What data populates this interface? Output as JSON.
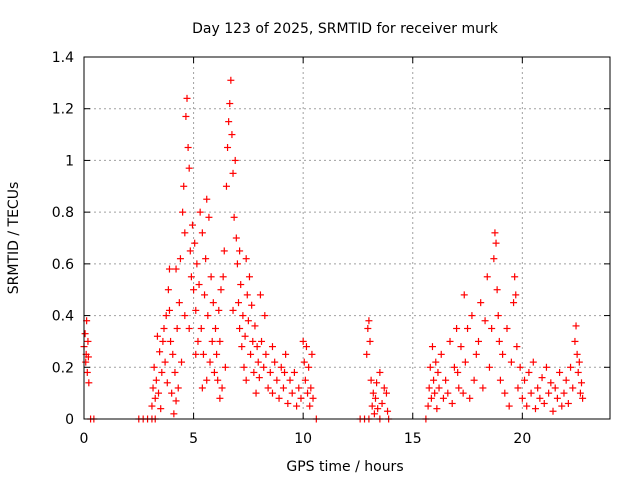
{
  "chart_data": {
    "type": "scatter",
    "title": "Day 123 of 2025, SRMTID for receiver murk",
    "xlabel": "GPS time / hours",
    "ylabel": "SRMTID / TECUs",
    "xlim": [
      0,
      24
    ],
    "ylim": [
      0,
      1.4
    ],
    "x_ticks": [
      "0",
      "5",
      "10",
      "15",
      "20"
    ],
    "x_tick_values": [
      0,
      5,
      10,
      15,
      20
    ],
    "y_ticks": [
      "0",
      "0.2",
      "0.4",
      "0.6",
      "0.8",
      "1",
      "1.2",
      "1.4"
    ],
    "y_tick_values": [
      0,
      0.2,
      0.4,
      0.6,
      0.8,
      1.0,
      1.2,
      1.4
    ],
    "grid": true,
    "marker": "plus",
    "color": "#ff0000",
    "series": [
      {
        "name": "SRMTID",
        "points": [
          [
            0.0,
            0.28
          ],
          [
            0.05,
            0.33
          ],
          [
            0.08,
            0.22
          ],
          [
            0.1,
            0.25
          ],
          [
            0.12,
            0.38
          ],
          [
            0.15,
            0.18
          ],
          [
            0.18,
            0.3
          ],
          [
            0.2,
            0.24
          ],
          [
            0.22,
            0.14
          ],
          [
            0.3,
            0.0
          ],
          [
            0.45,
            0.0
          ],
          [
            2.5,
            0.0
          ],
          [
            2.7,
            0.0
          ],
          [
            2.9,
            0.0
          ],
          [
            3.1,
            0.0
          ],
          [
            3.25,
            0.0
          ],
          [
            3.1,
            0.05
          ],
          [
            3.15,
            0.12
          ],
          [
            3.2,
            0.2
          ],
          [
            3.25,
            0.08
          ],
          [
            3.3,
            0.15
          ],
          [
            3.35,
            0.32
          ],
          [
            3.4,
            0.1
          ],
          [
            3.45,
            0.26
          ],
          [
            3.5,
            0.04
          ],
          [
            3.55,
            0.18
          ],
          [
            3.6,
            0.3
          ],
          [
            3.65,
            0.35
          ],
          [
            3.7,
            0.22
          ],
          [
            3.75,
            0.4
          ],
          [
            3.8,
            0.14
          ],
          [
            3.85,
            0.5
          ],
          [
            3.9,
            0.58
          ],
          [
            3.95,
            0.3
          ],
          [
            4.0,
            0.1
          ],
          [
            4.05,
            0.25
          ],
          [
            4.1,
            0.02
          ],
          [
            4.15,
            0.18
          ],
          [
            4.2,
            0.07
          ],
          [
            4.25,
            0.35
          ],
          [
            4.3,
            0.12
          ],
          [
            4.35,
            0.45
          ],
          [
            4.4,
            0.62
          ],
          [
            4.45,
            0.22
          ],
          [
            4.5,
            0.8
          ],
          [
            4.55,
            0.9
          ],
          [
            4.6,
            0.72
          ],
          [
            4.65,
            1.17
          ],
          [
            4.7,
            1.24
          ],
          [
            4.75,
            1.05
          ],
          [
            4.8,
            0.97
          ],
          [
            4.85,
            0.65
          ],
          [
            4.9,
            0.55
          ],
          [
            4.95,
            0.75
          ],
          [
            5.0,
            0.5
          ],
          [
            5.05,
            0.68
          ],
          [
            5.1,
            0.42
          ],
          [
            5.15,
            0.6
          ],
          [
            5.2,
            0.3
          ],
          [
            5.25,
            0.52
          ],
          [
            5.3,
            0.8
          ],
          [
            5.35,
            0.35
          ],
          [
            5.4,
            0.72
          ],
          [
            5.45,
            0.25
          ],
          [
            5.5,
            0.48
          ],
          [
            5.55,
            0.62
          ],
          [
            5.6,
            0.85
          ],
          [
            5.65,
            0.4
          ],
          [
            5.7,
            0.78
          ],
          [
            5.75,
            0.22
          ],
          [
            5.8,
            0.55
          ],
          [
            5.85,
            0.3
          ],
          [
            5.9,
            0.45
          ],
          [
            5.95,
            0.18
          ],
          [
            6.0,
            0.35
          ],
          [
            6.05,
            0.25
          ],
          [
            6.1,
            0.15
          ],
          [
            6.15,
            0.42
          ],
          [
            6.2,
            0.3
          ],
          [
            6.25,
            0.5
          ],
          [
            6.3,
            0.12
          ],
          [
            6.35,
            0.55
          ],
          [
            6.4,
            0.65
          ],
          [
            6.45,
            0.2
          ],
          [
            6.5,
            0.9
          ],
          [
            6.55,
            1.05
          ],
          [
            6.6,
            1.15
          ],
          [
            6.65,
            1.22
          ],
          [
            6.7,
            1.31
          ],
          [
            6.75,
            1.1
          ],
          [
            6.8,
            0.95
          ],
          [
            6.85,
            0.78
          ],
          [
            6.9,
            1.0
          ],
          [
            6.95,
            0.7
          ],
          [
            7.0,
            0.6
          ],
          [
            7.05,
            0.45
          ],
          [
            7.1,
            0.35
          ],
          [
            7.15,
            0.52
          ],
          [
            7.2,
            0.28
          ],
          [
            7.25,
            0.4
          ],
          [
            7.3,
            0.2
          ],
          [
            7.35,
            0.32
          ],
          [
            7.4,
            0.15
          ],
          [
            7.45,
            0.48
          ],
          [
            7.5,
            0.38
          ],
          [
            7.55,
            0.55
          ],
          [
            7.6,
            0.25
          ],
          [
            7.65,
            0.44
          ],
          [
            7.7,
            0.3
          ],
          [
            7.75,
            0.18
          ],
          [
            7.8,
            0.36
          ],
          [
            7.85,
            0.1
          ],
          [
            7.9,
            0.28
          ],
          [
            7.95,
            0.22
          ],
          [
            8.0,
            0.16
          ],
          [
            8.1,
            0.3
          ],
          [
            8.2,
            0.2
          ],
          [
            8.3,
            0.25
          ],
          [
            8.4,
            0.12
          ],
          [
            8.5,
            0.18
          ],
          [
            8.6,
            0.1
          ],
          [
            8.7,
            0.22
          ],
          [
            8.8,
            0.15
          ],
          [
            8.9,
            0.08
          ],
          [
            9.0,
            0.2
          ],
          [
            9.1,
            0.12
          ],
          [
            9.2,
            0.25
          ],
          [
            9.3,
            0.06
          ],
          [
            9.4,
            0.15
          ],
          [
            9.5,
            0.1
          ],
          [
            9.6,
            0.18
          ],
          [
            9.7,
            0.05
          ],
          [
            9.8,
            0.12
          ],
          [
            9.9,
            0.08
          ],
          [
            10.0,
            0.3
          ],
          [
            10.05,
            0.22
          ],
          [
            10.1,
            0.15
          ],
          [
            10.15,
            0.28
          ],
          [
            10.2,
            0.1
          ],
          [
            10.25,
            0.2
          ],
          [
            10.3,
            0.05
          ],
          [
            10.35,
            0.12
          ],
          [
            10.4,
            0.25
          ],
          [
            10.45,
            0.08
          ],
          [
            4.2,
            0.58
          ],
          [
            4.8,
            0.35
          ],
          [
            5.1,
            0.25
          ],
          [
            5.6,
            0.15
          ],
          [
            6.2,
            0.08
          ],
          [
            6.8,
            0.42
          ],
          [
            7.1,
            0.65
          ],
          [
            7.4,
            0.62
          ],
          [
            8.05,
            0.48
          ],
          [
            8.25,
            0.4
          ],
          [
            8.6,
            0.28
          ],
          [
            9.15,
            0.18
          ],
          [
            3.9,
            0.42
          ],
          [
            4.6,
            0.4
          ],
          [
            5.4,
            0.12
          ],
          [
            10.6,
            0.0
          ],
          [
            12.6,
            0.0
          ],
          [
            12.8,
            0.0
          ],
          [
            13.0,
            0.0
          ],
          [
            13.5,
            0.0
          ],
          [
            13.9,
            0.0
          ],
          [
            15.6,
            0.0
          ],
          [
            12.9,
            0.25
          ],
          [
            12.95,
            0.35
          ],
          [
            13.0,
            0.38
          ],
          [
            13.05,
            0.3
          ],
          [
            13.1,
            0.15
          ],
          [
            13.15,
            0.05
          ],
          [
            13.2,
            0.1
          ],
          [
            13.25,
            0.02
          ],
          [
            13.3,
            0.08
          ],
          [
            13.35,
            0.14
          ],
          [
            13.4,
            0.04
          ],
          [
            13.5,
            0.18
          ],
          [
            13.6,
            0.06
          ],
          [
            13.7,
            0.12
          ],
          [
            13.8,
            0.1
          ],
          [
            13.85,
            0.03
          ],
          [
            15.7,
            0.05
          ],
          [
            15.75,
            0.12
          ],
          [
            15.8,
            0.2
          ],
          [
            15.85,
            0.08
          ],
          [
            15.9,
            0.28
          ],
          [
            15.95,
            0.15
          ],
          [
            16.0,
            0.1
          ],
          [
            16.05,
            0.22
          ],
          [
            16.1,
            0.04
          ],
          [
            16.15,
            0.18
          ],
          [
            16.2,
            0.12
          ],
          [
            16.3,
            0.25
          ],
          [
            16.4,
            0.08
          ],
          [
            16.5,
            0.15
          ],
          [
            16.6,
            0.1
          ],
          [
            16.7,
            0.3
          ],
          [
            16.8,
            0.06
          ],
          [
            16.9,
            0.2
          ],
          [
            17.0,
            0.35
          ],
          [
            17.05,
            0.18
          ],
          [
            17.1,
            0.12
          ],
          [
            17.2,
            0.28
          ],
          [
            17.3,
            0.1
          ],
          [
            17.35,
            0.48
          ],
          [
            17.4,
            0.22
          ],
          [
            17.5,
            0.35
          ],
          [
            17.6,
            0.08
          ],
          [
            17.7,
            0.4
          ],
          [
            17.8,
            0.15
          ],
          [
            17.9,
            0.25
          ],
          [
            18.0,
            0.3
          ],
          [
            18.1,
            0.45
          ],
          [
            18.2,
            0.12
          ],
          [
            18.3,
            0.38
          ],
          [
            18.4,
            0.55
          ],
          [
            18.5,
            0.2
          ],
          [
            18.6,
            0.35
          ],
          [
            18.7,
            0.62
          ],
          [
            18.75,
            0.72
          ],
          [
            18.8,
            0.68
          ],
          [
            18.85,
            0.5
          ],
          [
            18.9,
            0.4
          ],
          [
            18.95,
            0.3
          ],
          [
            19.0,
            0.15
          ],
          [
            19.1,
            0.25
          ],
          [
            19.2,
            0.1
          ],
          [
            19.3,
            0.35
          ],
          [
            19.4,
            0.05
          ],
          [
            19.5,
            0.22
          ],
          [
            19.6,
            0.45
          ],
          [
            19.65,
            0.55
          ],
          [
            19.7,
            0.48
          ],
          [
            19.75,
            0.28
          ],
          [
            19.8,
            0.12
          ],
          [
            19.9,
            0.2
          ],
          [
            20.0,
            0.08
          ],
          [
            20.1,
            0.15
          ],
          [
            20.2,
            0.05
          ],
          [
            20.3,
            0.18
          ],
          [
            20.4,
            0.1
          ],
          [
            20.5,
            0.22
          ],
          [
            20.6,
            0.04
          ],
          [
            20.7,
            0.12
          ],
          [
            20.8,
            0.08
          ],
          [
            20.9,
            0.16
          ],
          [
            21.0,
            0.06
          ],
          [
            21.1,
            0.2
          ],
          [
            21.2,
            0.1
          ],
          [
            21.3,
            0.14
          ],
          [
            21.4,
            0.03
          ],
          [
            21.5,
            0.12
          ],
          [
            21.6,
            0.08
          ],
          [
            21.7,
            0.18
          ],
          [
            21.8,
            0.05
          ],
          [
            21.9,
            0.1
          ],
          [
            22.0,
            0.15
          ],
          [
            22.1,
            0.06
          ],
          [
            22.2,
            0.2
          ],
          [
            22.3,
            0.12
          ],
          [
            22.4,
            0.3
          ],
          [
            22.45,
            0.36
          ],
          [
            22.5,
            0.25
          ],
          [
            22.55,
            0.18
          ],
          [
            22.6,
            0.22
          ],
          [
            22.65,
            0.1
          ],
          [
            22.7,
            0.14
          ],
          [
            22.75,
            0.08
          ]
        ]
      }
    ]
  }
}
